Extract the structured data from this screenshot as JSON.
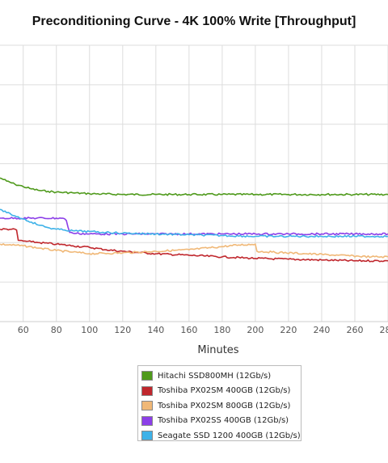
{
  "chart_data": {
    "type": "line",
    "title": "Preconditioning Curve - 4K 100% Write [Throughput]",
    "xlabel": "Minutes",
    "ylabel": "",
    "x_ticks": [
      60,
      80,
      100,
      120,
      140,
      160,
      180,
      200,
      220,
      240,
      260,
      280
    ],
    "xlim": [
      46,
      280
    ],
    "ylim": [
      0,
      350
    ],
    "grid": true,
    "legend_position": "bottom-center",
    "series": [
      {
        "name": "Hitachi SSD800MH (12Gb/s)",
        "color": "#4f9a1c",
        "points": [
          [
            46,
            182
          ],
          [
            50,
            178
          ],
          [
            55,
            174
          ],
          [
            60,
            171
          ],
          [
            65,
            168
          ],
          [
            70,
            166
          ],
          [
            75,
            165
          ],
          [
            80,
            164
          ],
          [
            90,
            163
          ],
          [
            100,
            162
          ],
          [
            120,
            161
          ],
          [
            140,
            161
          ],
          [
            160,
            161
          ],
          [
            180,
            161
          ],
          [
            200,
            161
          ],
          [
            220,
            161
          ],
          [
            240,
            161
          ],
          [
            260,
            161
          ],
          [
            280,
            161
          ]
        ]
      },
      {
        "name": "Toshiba PX02SM 400GB (12Gb/s)",
        "color": "#c0272d",
        "points": [
          [
            46,
            117
          ],
          [
            53,
            117
          ],
          [
            56,
            116
          ],
          [
            57,
            103
          ],
          [
            60,
            102
          ],
          [
            65,
            101
          ],
          [
            70,
            100
          ],
          [
            80,
            98
          ],
          [
            90,
            96
          ],
          [
            100,
            94
          ],
          [
            110,
            91
          ],
          [
            120,
            89
          ],
          [
            140,
            86
          ],
          [
            160,
            84
          ],
          [
            180,
            82
          ],
          [
            200,
            80
          ],
          [
            220,
            79
          ],
          [
            240,
            78
          ],
          [
            260,
            77
          ],
          [
            280,
            77
          ]
        ]
      },
      {
        "name": "Toshiba PX02SM 800GB (12Gb/s)",
        "color": "#f0b877",
        "points": [
          [
            46,
            98
          ],
          [
            60,
            96
          ],
          [
            70,
            93
          ],
          [
            80,
            90
          ],
          [
            90,
            88
          ],
          [
            100,
            86
          ],
          [
            120,
            87
          ],
          [
            140,
            89
          ],
          [
            160,
            91
          ],
          [
            180,
            95
          ],
          [
            190,
            97
          ],
          [
            200,
            98
          ],
          [
            201,
            89
          ],
          [
            210,
            88
          ],
          [
            230,
            86
          ],
          [
            250,
            84
          ],
          [
            270,
            82
          ],
          [
            280,
            82
          ]
        ]
      },
      {
        "name": "Toshiba PX02SS 400GB (12Gb/s)",
        "color": "#8c3fe8",
        "points": [
          [
            46,
            131
          ],
          [
            84,
            131
          ],
          [
            86,
            128
          ],
          [
            88,
            113
          ],
          [
            90,
            112
          ],
          [
            100,
            111
          ],
          [
            120,
            111
          ],
          [
            140,
            111
          ],
          [
            160,
            111
          ],
          [
            180,
            111
          ],
          [
            200,
            111
          ],
          [
            220,
            111
          ],
          [
            240,
            111
          ],
          [
            260,
            111
          ],
          [
            280,
            111
          ]
        ]
      },
      {
        "name": "Seagate SSD 1200 400GB (12Gb/s)",
        "color": "#3eb2e8",
        "points": [
          [
            46,
            142
          ],
          [
            50,
            138
          ],
          [
            55,
            134
          ],
          [
            60,
            130
          ],
          [
            65,
            126
          ],
          [
            70,
            122
          ],
          [
            75,
            119
          ],
          [
            80,
            117
          ],
          [
            85,
            116
          ],
          [
            90,
            115
          ],
          [
            100,
            114
          ],
          [
            110,
            113
          ],
          [
            120,
            112
          ],
          [
            140,
            111
          ],
          [
            160,
            110
          ],
          [
            180,
            109
          ],
          [
            200,
            108
          ],
          [
            220,
            108
          ],
          [
            240,
            108
          ],
          [
            260,
            108
          ],
          [
            280,
            108
          ]
        ]
      }
    ]
  }
}
